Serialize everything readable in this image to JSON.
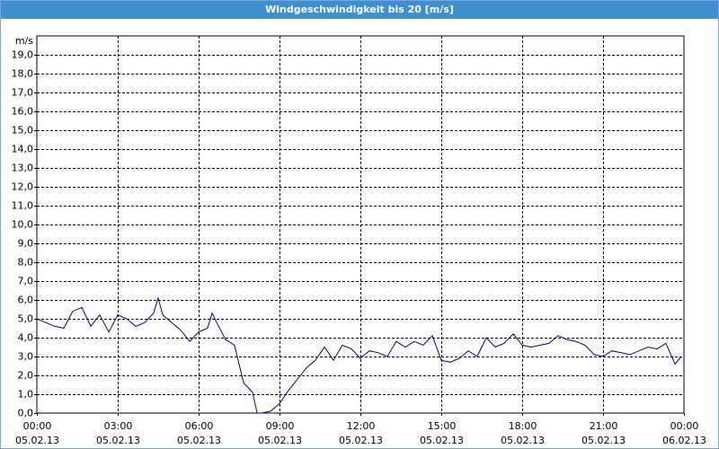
{
  "chart_data": {
    "type": "line",
    "title": "Windgeschwindigkeit bis 20 [m/s]",
    "y_label": "m/s",
    "xlim": [
      0,
      24
    ],
    "ylim": [
      0,
      20
    ],
    "xticks": [
      {
        "value": 0,
        "label": "00:00"
      },
      {
        "value": 3,
        "label": "03:00"
      },
      {
        "value": 6,
        "label": "06:00"
      },
      {
        "value": 9,
        "label": "09:00"
      },
      {
        "value": 12,
        "label": "12:00"
      },
      {
        "value": 15,
        "label": "15:00"
      },
      {
        "value": 18,
        "label": "18:00"
      },
      {
        "value": 21,
        "label": "21:00"
      },
      {
        "value": 24,
        "label": "00:00"
      }
    ],
    "xtick_dates": [
      "05.02.13",
      "05.02.13",
      "05.02.13",
      "05.02.13",
      "05.02.13",
      "05.02.13",
      "05.02.13",
      "05.02.13",
      "06.02.13"
    ],
    "yticks": [
      {
        "value": 0,
        "label": "0,0"
      },
      {
        "value": 1,
        "label": "1,0"
      },
      {
        "value": 2,
        "label": "2,0"
      },
      {
        "value": 3,
        "label": "3,0"
      },
      {
        "value": 4,
        "label": "4,0"
      },
      {
        "value": 5,
        "label": "5,0"
      },
      {
        "value": 6,
        "label": "6,0"
      },
      {
        "value": 7,
        "label": "7,0"
      },
      {
        "value": 8,
        "label": "8,0"
      },
      {
        "value": 9,
        "label": "9,0"
      },
      {
        "value": 10,
        "label": "10,0"
      },
      {
        "value": 11,
        "label": "11,0"
      },
      {
        "value": 12,
        "label": "12,0"
      },
      {
        "value": 13,
        "label": "13,0"
      },
      {
        "value": 14,
        "label": "14,0"
      },
      {
        "value": 15,
        "label": "15,0"
      },
      {
        "value": 16,
        "label": "16,0"
      },
      {
        "value": 17,
        "label": "17,0"
      },
      {
        "value": 18,
        "label": "18,0"
      },
      {
        "value": 19,
        "label": "19,0"
      }
    ],
    "grid": true,
    "color": "#00008b",
    "x": [
      0,
      0.33,
      0.67,
      1,
      1.33,
      1.67,
      2,
      2.33,
      2.67,
      3,
      3.33,
      3.67,
      4,
      4.33,
      4.5,
      4.67,
      5,
      5.33,
      5.67,
      6,
      6.33,
      6.5,
      6.67,
      7,
      7.33,
      7.67,
      8,
      8.17,
      8.33,
      8.67,
      9,
      9.33,
      9.67,
      10,
      10.33,
      10.67,
      11,
      11.33,
      11.67,
      12,
      12.33,
      12.67,
      13,
      13.33,
      13.67,
      14,
      14.33,
      14.67,
      15,
      15.33,
      15.67,
      16,
      16.33,
      16.67,
      17,
      17.33,
      17.67,
      18,
      18.33,
      18.67,
      19,
      19.33,
      19.67,
      20,
      20.33,
      20.67,
      21,
      21.33,
      21.67,
      22,
      22.33,
      22.67,
      23,
      23.33,
      23.67,
      23.9
    ],
    "values": [
      5.0,
      4.8,
      4.6,
      4.5,
      5.4,
      5.6,
      4.6,
      5.2,
      4.3,
      5.2,
      5.0,
      4.6,
      4.8,
      5.3,
      6.1,
      5.2,
      4.8,
      4.4,
      3.8,
      4.3,
      4.5,
      5.3,
      4.8,
      3.9,
      3.6,
      1.6,
      1.1,
      0.0,
      0.0,
      0.1,
      0.5,
      1.2,
      1.8,
      2.4,
      2.8,
      3.5,
      2.8,
      3.6,
      3.4,
      2.9,
      3.3,
      3.2,
      3.0,
      3.8,
      3.5,
      3.8,
      3.6,
      4.1,
      2.8,
      2.7,
      2.9,
      3.3,
      3.0,
      4.0,
      3.5,
      3.7,
      4.2,
      3.6,
      3.5,
      3.6,
      3.7,
      4.1,
      3.9,
      3.8,
      3.6,
      3.1,
      3.0,
      3.3,
      3.2,
      3.1,
      3.3,
      3.5,
      3.4,
      3.7,
      2.6,
      3.0
    ]
  }
}
